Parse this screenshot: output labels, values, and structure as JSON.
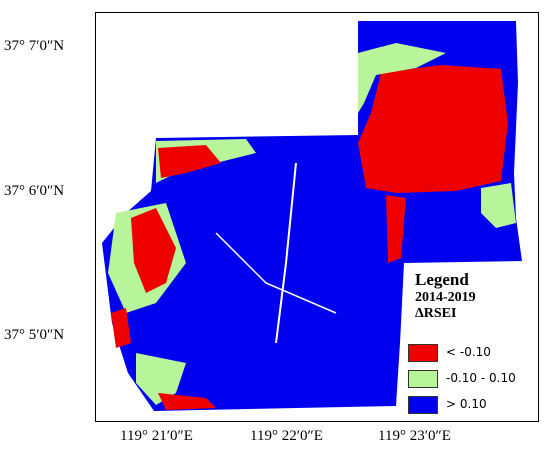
{
  "map": {
    "lat_labels": [
      "37° 7′0″N",
      "37° 6′0″N",
      "37° 5′0″N"
    ],
    "lon_labels": [
      "119° 21′0″E",
      "119° 22′0″E",
      "119° 23′0″E"
    ]
  },
  "legend": {
    "title": "Legend",
    "period": "2014-2019",
    "index": "ΔRSEI",
    "items": [
      {
        "label": "< -0.10",
        "color": "#ee0000"
      },
      {
        "label": "-0.10 - 0.10",
        "color": "#b8f59a"
      },
      {
        "label": "> 0.10",
        "color": "#0000ee"
      }
    ]
  },
  "colors": {
    "decrease": "#ee0000",
    "stable": "#b8f59a",
    "increase": "#0000ee"
  }
}
